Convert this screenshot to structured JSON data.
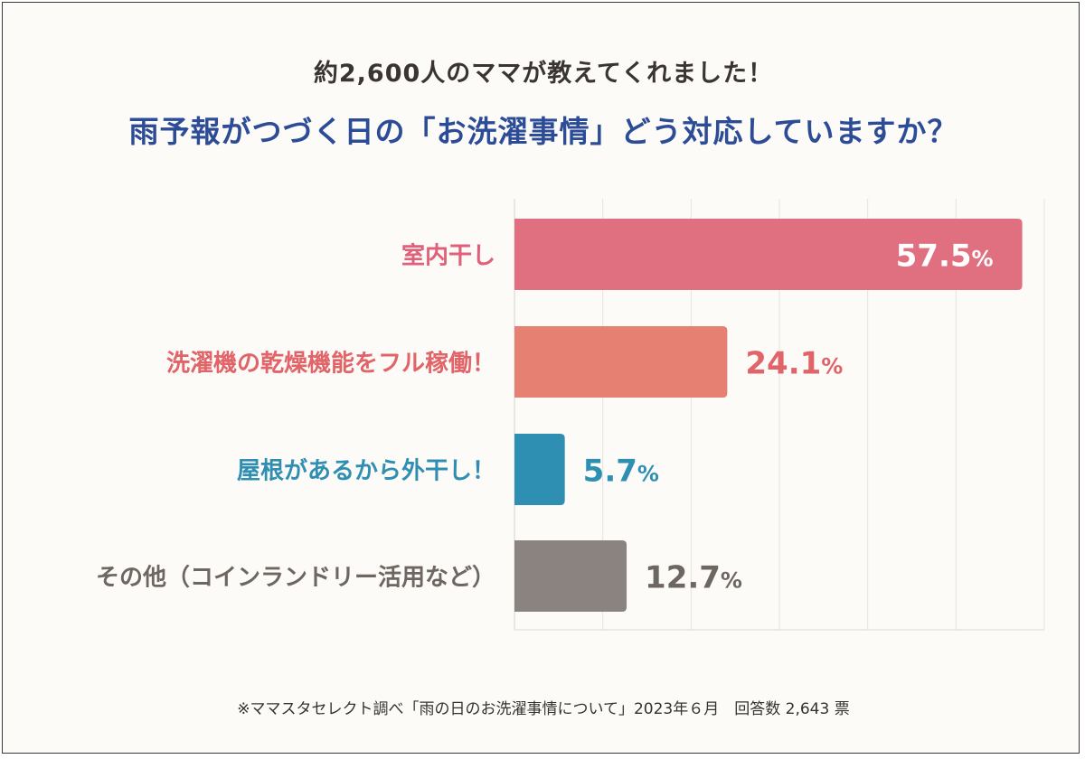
{
  "header": {
    "subtitle": "約2,600人のママが教えてくれました！",
    "title": "雨予報がつづく日の「お洗濯事情」どう対応していますか？"
  },
  "footer": {
    "source": "※ママスタセレクト調べ「雨の日のお洗濯事情について」2023年６月　回答数 2,643 票"
  },
  "chart_data": {
    "type": "bar",
    "orientation": "horizontal",
    "title": "雨予報がつづく日の「お洗濯事情」どう対応していますか？",
    "categories": [
      "室内干し",
      "洗濯機の乾燥機能をフル稼働！",
      "屋根があるから外干し！",
      "その他（コインランドリー活用など）"
    ],
    "values": [
      57.5,
      24.1,
      5.7,
      12.7
    ],
    "value_labels": [
      "57.5",
      "24.1",
      "5.7",
      "12.7"
    ],
    "unit": "%",
    "colors": [
      "#e07080",
      "#e68072",
      "#2f8fb3",
      "#8a837f"
    ],
    "label_colors": [
      "#e0607a",
      "#e06468",
      "#2f8fb3",
      "#6e6661"
    ],
    "xlim": [
      0,
      60
    ],
    "grid_step": 10,
    "grid": true,
    "xlabel": "",
    "ylabel": ""
  }
}
